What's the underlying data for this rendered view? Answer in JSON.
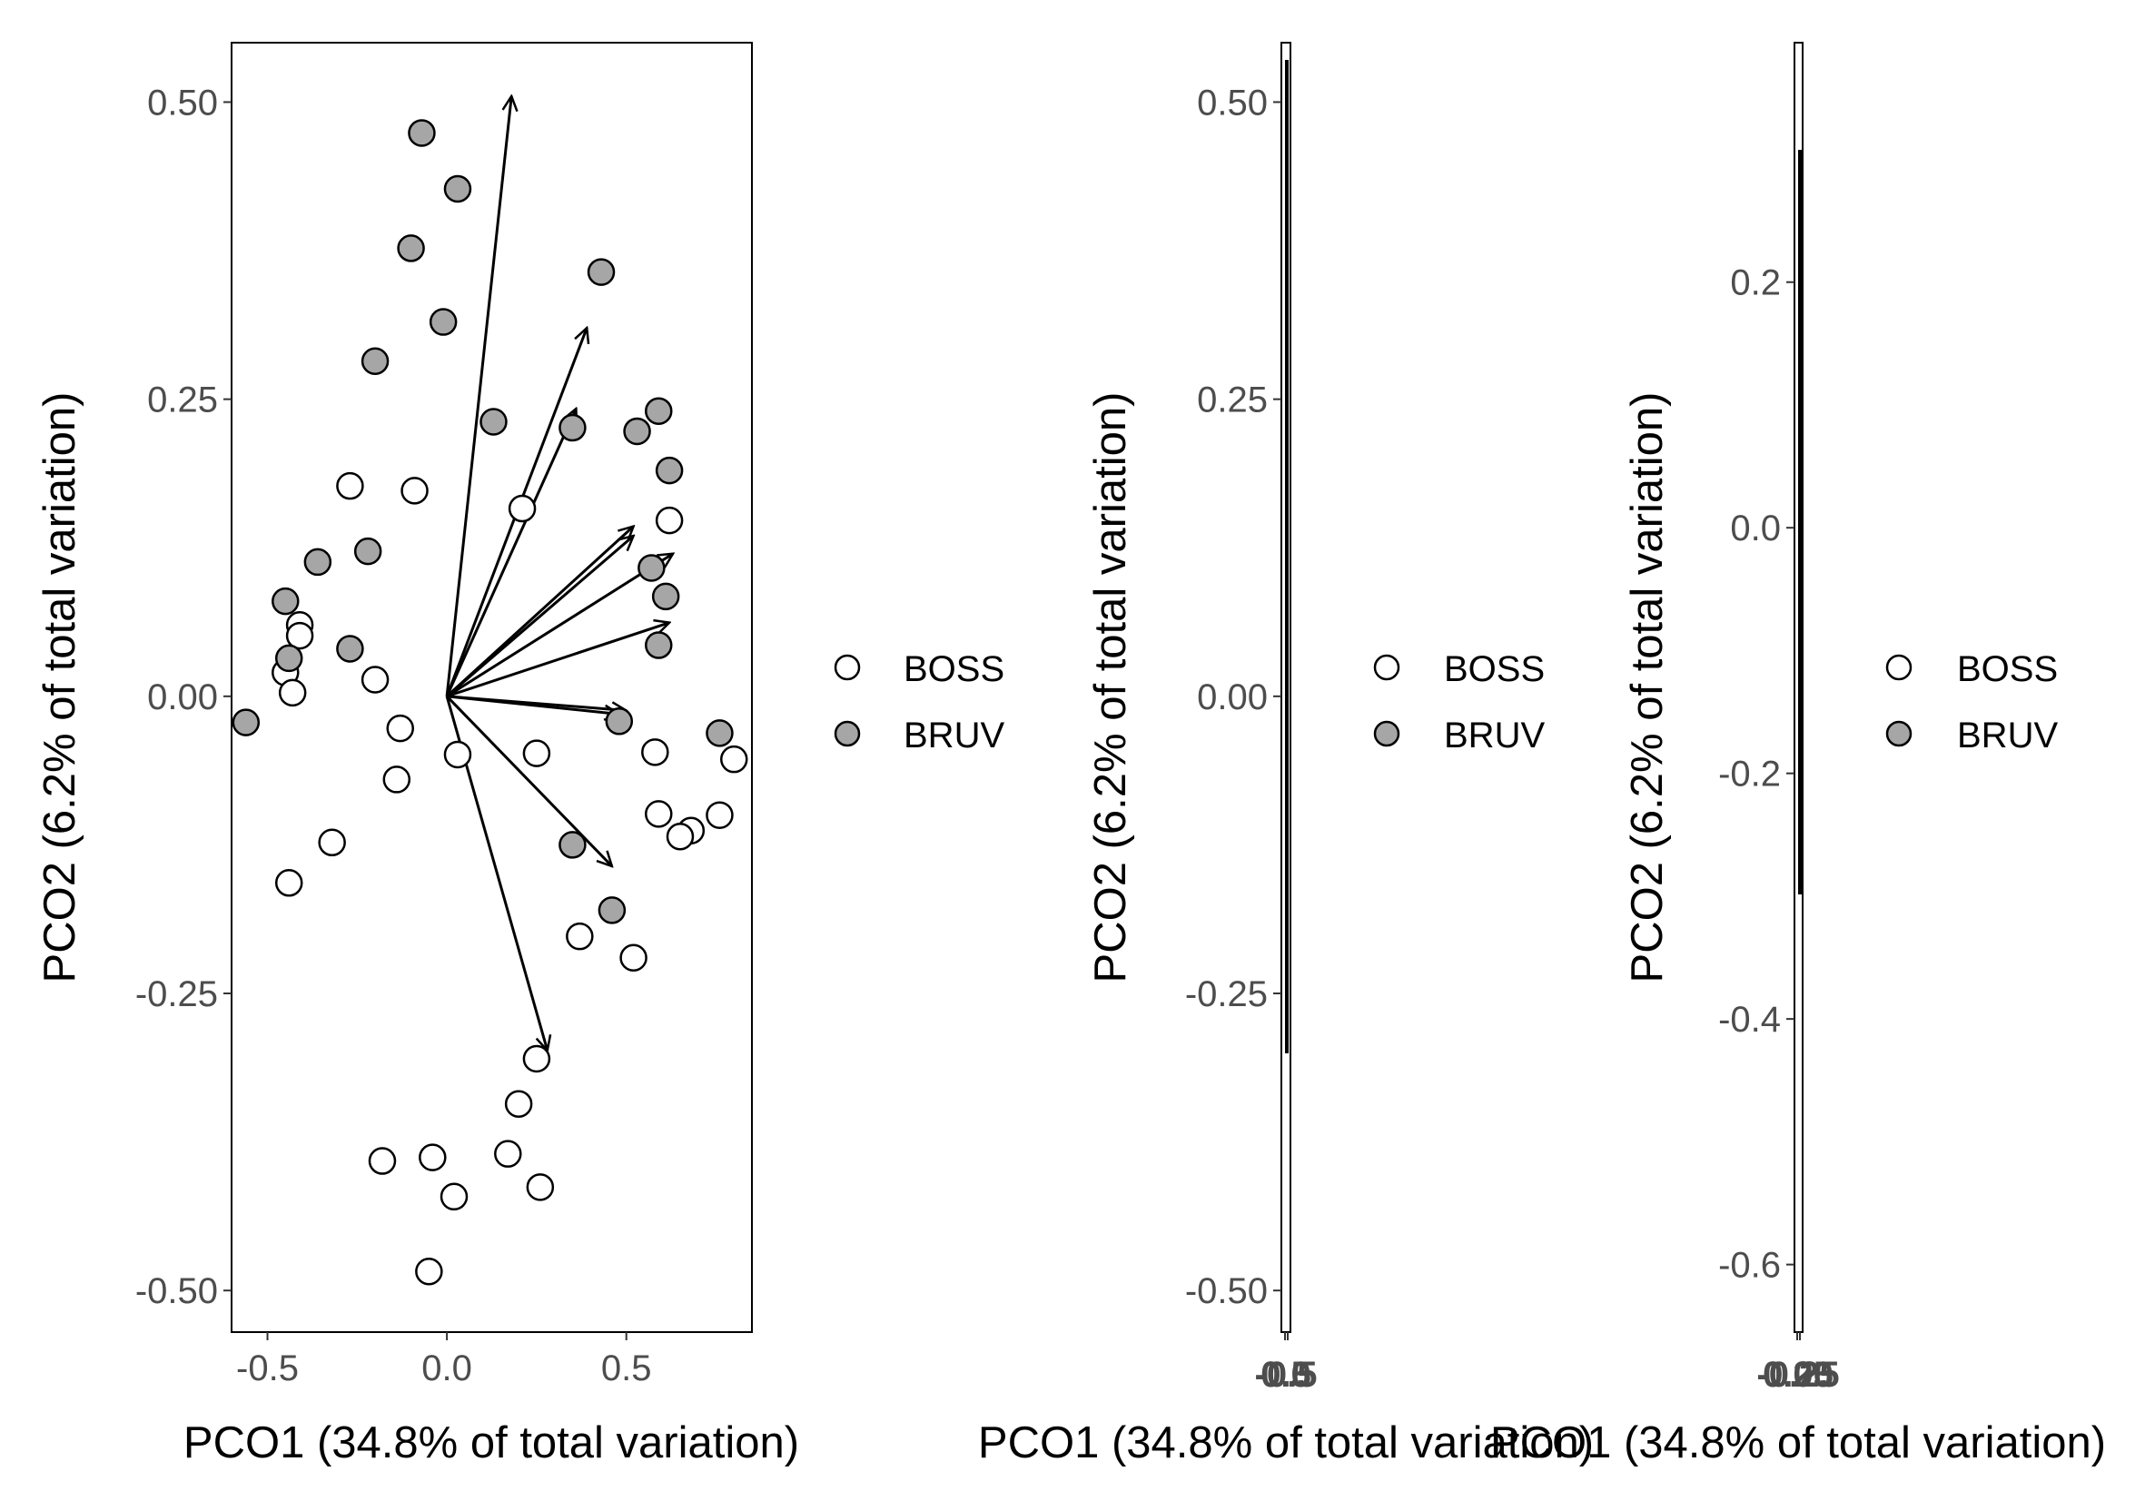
{
  "legend": [
    {
      "label": "BOSS",
      "fill": "#ffffff"
    },
    {
      "label": "BRUV",
      "fill": "#a6a6a6"
    }
  ],
  "chart_data": [
    {
      "type": "scatter",
      "xlabel": "PCO1 (34.8% of total variation)",
      "ylabel": "PCO2 (6.2% of total variation)",
      "xlim": [
        -0.6,
        0.85
      ],
      "ylim": [
        -0.535,
        0.55
      ],
      "x_ticks": [
        "-0.5",
        "0.0",
        "0.5"
      ],
      "x_tick_values": [
        -0.5,
        0.0,
        0.5
      ],
      "y_ticks": [
        "0.50",
        "0.25",
        "0.00",
        "-0.25",
        "-0.50"
      ],
      "y_tick_values": [
        0.5,
        0.25,
        0.0,
        -0.25,
        -0.5
      ],
      "grid": false,
      "legend_position": "right",
      "series": [
        {
          "name": "BOSS",
          "fill": "#ffffff",
          "points": [
            [
              0.21,
              0.158
            ],
            [
              -0.27,
              0.177
            ],
            [
              -0.09,
              0.173
            ],
            [
              0.62,
              0.148
            ],
            [
              -0.41,
              0.06
            ],
            [
              -0.41,
              0.051
            ],
            [
              -0.45,
              0.02
            ],
            [
              -0.43,
              0.003
            ],
            [
              -0.2,
              0.014
            ],
            [
              -0.13,
              -0.027
            ],
            [
              0.03,
              -0.049
            ],
            [
              0.25,
              -0.048
            ],
            [
              0.58,
              -0.047
            ],
            [
              0.8,
              -0.053
            ],
            [
              -0.14,
              -0.07
            ],
            [
              0.59,
              -0.099
            ],
            [
              0.76,
              -0.1
            ],
            [
              0.68,
              -0.113
            ],
            [
              0.65,
              -0.118
            ],
            [
              -0.32,
              -0.123
            ],
            [
              -0.44,
              -0.157
            ],
            [
              0.37,
              -0.202
            ],
            [
              0.52,
              -0.22
            ],
            [
              0.25,
              -0.305
            ],
            [
              0.2,
              -0.343
            ],
            [
              -0.18,
              -0.391
            ],
            [
              -0.04,
              -0.388
            ],
            [
              0.17,
              -0.385
            ],
            [
              0.26,
              -0.413
            ],
            [
              0.02,
              -0.421
            ],
            [
              -0.05,
              -0.484
            ]
          ]
        },
        {
          "name": "BRUV",
          "fill": "#a6a6a6",
          "points": [
            [
              -0.07,
              0.474
            ],
            [
              0.03,
              0.427
            ],
            [
              -0.1,
              0.377
            ],
            [
              0.43,
              0.357
            ],
            [
              -0.01,
              0.315
            ],
            [
              -0.2,
              0.282
            ],
            [
              0.13,
              0.231
            ],
            [
              0.59,
              0.24
            ],
            [
              0.35,
              0.226
            ],
            [
              0.53,
              0.223
            ],
            [
              0.62,
              0.19
            ],
            [
              -0.36,
              0.113
            ],
            [
              -0.22,
              0.122
            ],
            [
              0.57,
              0.108
            ],
            [
              0.61,
              0.084
            ],
            [
              -0.45,
              0.08
            ],
            [
              -0.27,
              0.04
            ],
            [
              0.59,
              0.043
            ],
            [
              -0.44,
              0.032
            ],
            [
              -0.56,
              -0.022
            ],
            [
              0.48,
              -0.021
            ],
            [
              0.76,
              -0.031
            ],
            [
              0.35,
              -0.125
            ],
            [
              0.46,
              -0.18
            ]
          ]
        }
      ],
      "vectors": [
        [
          0.18,
          0.505
        ],
        [
          0.39,
          0.31
        ],
        [
          0.36,
          0.242
        ],
        [
          0.52,
          0.143
        ],
        [
          0.52,
          0.135
        ],
        [
          0.63,
          0.12
        ],
        [
          0.62,
          0.062
        ],
        [
          0.5,
          -0.012
        ],
        [
          0.48,
          -0.015
        ],
        [
          0.46,
          -0.143
        ],
        [
          0.28,
          -0.298
        ]
      ]
    },
    {
      "type": "scatter",
      "xlabel": "PCO1 (34.8% of total variation)",
      "ylabel": "PCO2 (6.2% of total variation)",
      "ylim": [
        -0.535,
        0.55
      ],
      "y_ticks": [
        "0.50",
        "0.25",
        "0.00",
        "-0.25",
        "-0.50"
      ],
      "y_tick_values": [
        0.5,
        0.25,
        0.0,
        -0.25,
        -0.5
      ],
      "x_tick_labels": [
        "-0.5",
        "0.0",
        "0.5"
      ],
      "vertical_extent": [
        -0.3,
        0.5
      ],
      "legend_position": "right"
    },
    {
      "type": "scatter",
      "xlabel": "PCO1 (34.8% of total variation)",
      "ylabel": "PCO2 (6.2% of total variation)",
      "ylim": [
        -0.655,
        0.395
      ],
      "y_ticks": [
        "0.2",
        "0.0",
        "-0.2",
        "-0.4",
        "-0.6"
      ],
      "y_tick_values": [
        0.2,
        0.0,
        -0.2,
        -0.4,
        -0.6
      ],
      "x_tick_labels": [
        "-0.25",
        "0.00",
        "0.25"
      ],
      "vertical_extent": [
        -0.3,
        0.31
      ],
      "legend_position": "right"
    }
  ]
}
